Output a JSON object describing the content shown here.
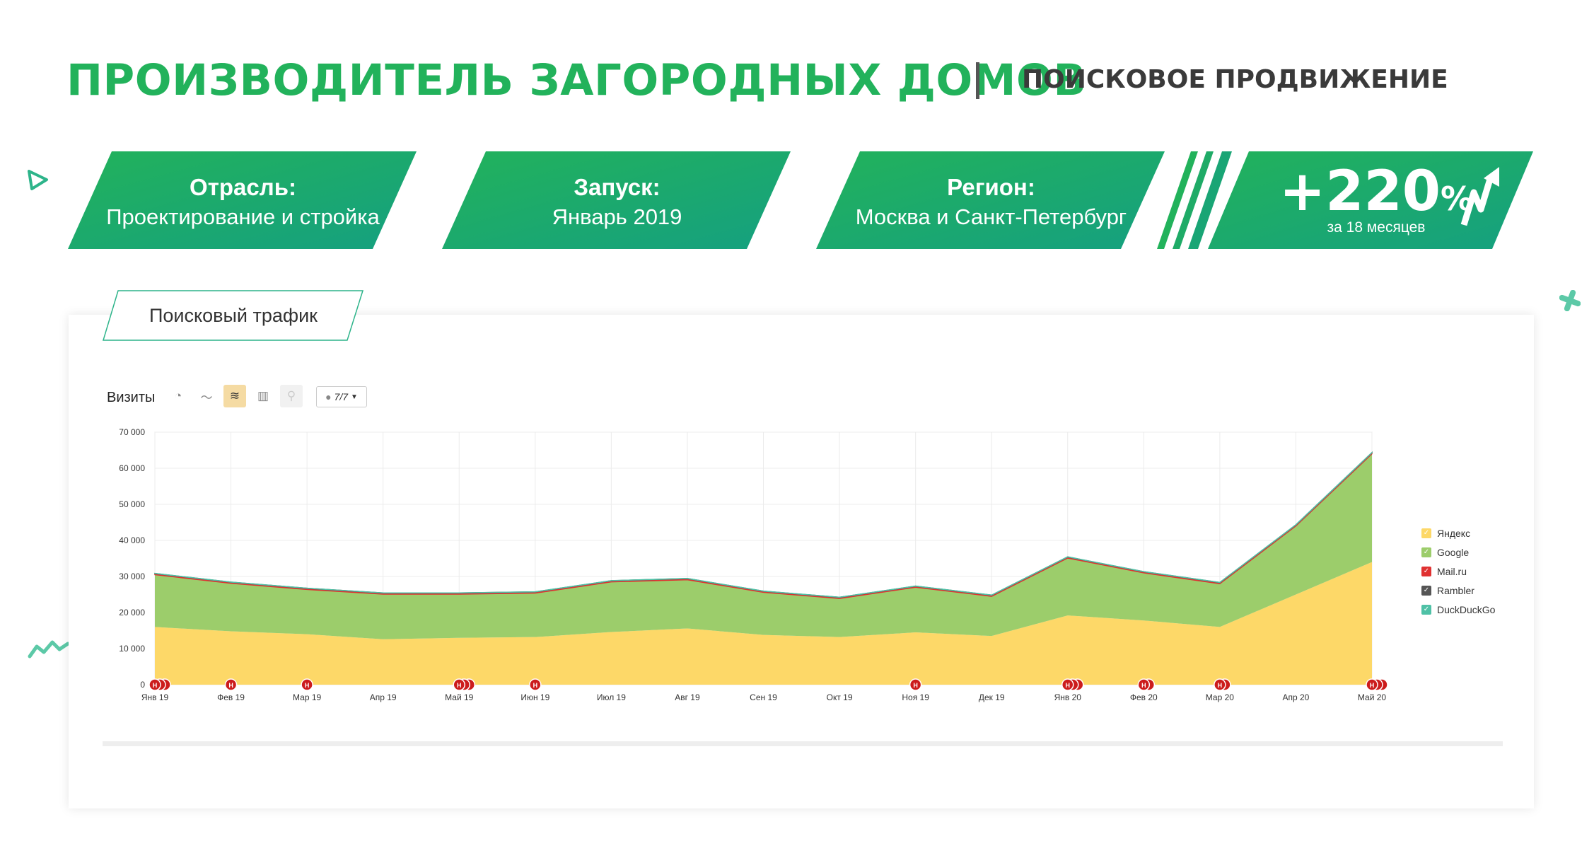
{
  "header": {
    "title": "ПРОИЗВОДИТЕЛЬ ЗАГОРОДНЫХ ДОМОВ",
    "separator": "|",
    "subtitle": "ПОИСКОВОЕ ПРОДВИЖЕНИЕ"
  },
  "cards": [
    {
      "label": "Отрасль:",
      "value": "Проектирование и стройка"
    },
    {
      "label": "Запуск:",
      "value": "Январь 2019"
    },
    {
      "label": "Регион:",
      "value": "Москва и Санкт-Петербург"
    }
  ],
  "result": {
    "value": "+220",
    "unit": "%",
    "period": "за 18 месяцев",
    "icon": "growth-arrow-icon"
  },
  "panel": {
    "tab_label": "Поисковый трафик",
    "chart_title": "Визиты",
    "tools": [
      "pie-chart-icon",
      "line-chart-icon",
      "stacked-area-icon",
      "bar-chart-icon",
      "map-icon"
    ],
    "annotations_select": "7/7"
  },
  "colors": {
    "brand_green": "#22b25b",
    "yandex": "#fdd868",
    "google": "#9ccd6b",
    "mailru": "#e03131",
    "rambler": "#555555",
    "duckduckgo": "#4fc1a6"
  },
  "chart_data": {
    "type": "area",
    "stacked": true,
    "title": "Визиты",
    "categories": [
      "Янв 19",
      "Фев 19",
      "Мар 19",
      "Апр 19",
      "Май 19",
      "Июн 19",
      "Июл 19",
      "Авг 19",
      "Сен 19",
      "Окт 19",
      "Ноя 19",
      "Дек 19",
      "Янв 20",
      "Фев 20",
      "Мар 20",
      "Апр 20",
      "Май 20"
    ],
    "ylim": [
      0,
      70000
    ],
    "yticks": [
      "0",
      "10 000",
      "20 000",
      "30 000",
      "40 000",
      "50 000",
      "60 000",
      "70 000"
    ],
    "grid": true,
    "legend_position": "right",
    "series": [
      {
        "name": "Яндекс",
        "values": [
          16000,
          14800,
          14000,
          12600,
          13000,
          13200,
          14600,
          15600,
          13800,
          13200,
          14500,
          13500,
          19200,
          17800,
          16000,
          25000,
          34000
        ]
      },
      {
        "name": "Google",
        "values": [
          14500,
          13300,
          12400,
          12500,
          12100,
          12200,
          13900,
          13500,
          11800,
          10700,
          12500,
          11000,
          15900,
          13200,
          12000,
          19000,
          30000
        ]
      },
      {
        "name": "Mail.ru",
        "values": [
          300,
          300,
          300,
          300,
          300,
          300,
          300,
          300,
          300,
          300,
          300,
          300,
          300,
          300,
          300,
          300,
          300
        ]
      },
      {
        "name": "Rambler",
        "values": [
          30,
          30,
          30,
          30,
          30,
          30,
          30,
          30,
          30,
          30,
          30,
          30,
          30,
          30,
          30,
          30,
          30
        ]
      },
      {
        "name": "DuckDuckGo",
        "values": [
          20,
          20,
          20,
          20,
          20,
          20,
          20,
          20,
          20,
          20,
          20,
          20,
          20,
          20,
          20,
          20,
          20
        ]
      }
    ],
    "markers": [
      {
        "at": 0,
        "count": 3
      },
      {
        "at": 1,
        "count": 1
      },
      {
        "at": 2,
        "count": 1
      },
      {
        "at": 4,
        "count": 3
      },
      {
        "at": 5,
        "count": 1
      },
      {
        "at": 10,
        "count": 1
      },
      {
        "at": 12,
        "count": 3
      },
      {
        "at": 13,
        "count": 2
      },
      {
        "at": 14,
        "count": 2
      },
      {
        "at": 16,
        "count": 3
      }
    ],
    "marker_label": "Н"
  }
}
